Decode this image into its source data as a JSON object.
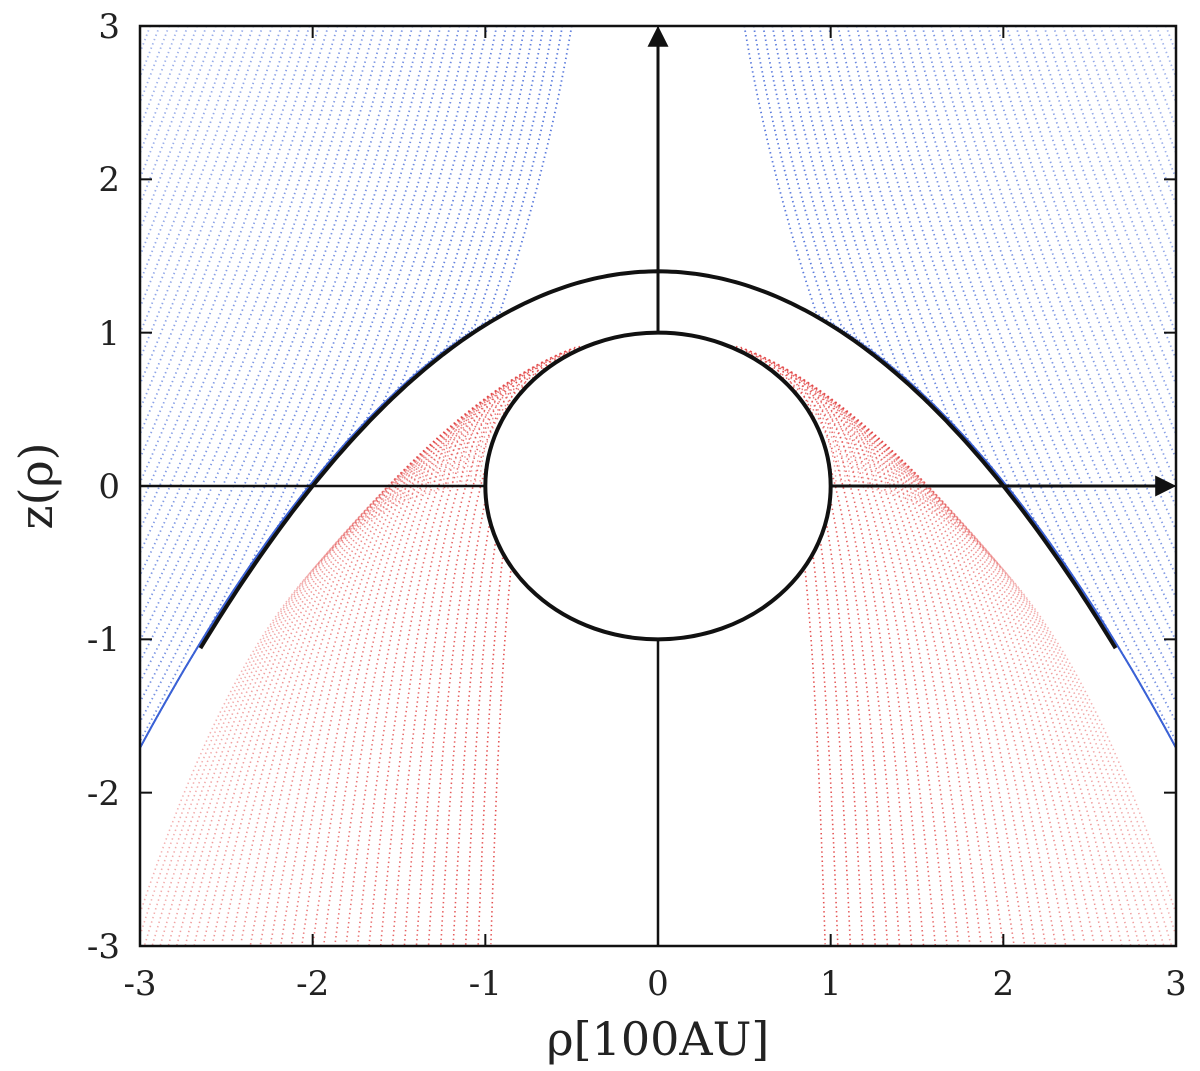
{
  "chart_data": {
    "type": "line",
    "title": "",
    "xlabel": "ρ[100AU]",
    "ylabel": "z(ρ)",
    "xlim": [
      -3,
      3
    ],
    "ylim": [
      -3,
      3
    ],
    "x_ticks": [
      "-3",
      "-2",
      "-1",
      "0",
      "1",
      "2",
      "3"
    ],
    "y_ticks": [
      "3",
      "2",
      "1",
      "0",
      "-1",
      "-2",
      "-3"
    ],
    "grid": false,
    "legend": "none",
    "central_circle": {
      "center": [
        0,
        0
      ],
      "radius": 1
    },
    "boundary_paraboloid": {
      "apex_z": 1.4,
      "crossing_z0_rho": [
        -2,
        2
      ],
      "base_rho_at_z_min": [
        -2.65,
        2.65
      ]
    },
    "field_line_families": [
      {
        "region": "outside boundary",
        "color": "#3b62d6"
      },
      {
        "region": "inside boundary",
        "color": "#e03c3c"
      }
    ],
    "annotations": [
      {
        "type": "arrow",
        "direction": "up",
        "from": [
          0,
          1
        ],
        "to": [
          0,
          3
        ]
      },
      {
        "type": "arrow",
        "direction": "right",
        "from": [
          1,
          0
        ],
        "to": [
          3,
          0
        ]
      }
    ]
  }
}
